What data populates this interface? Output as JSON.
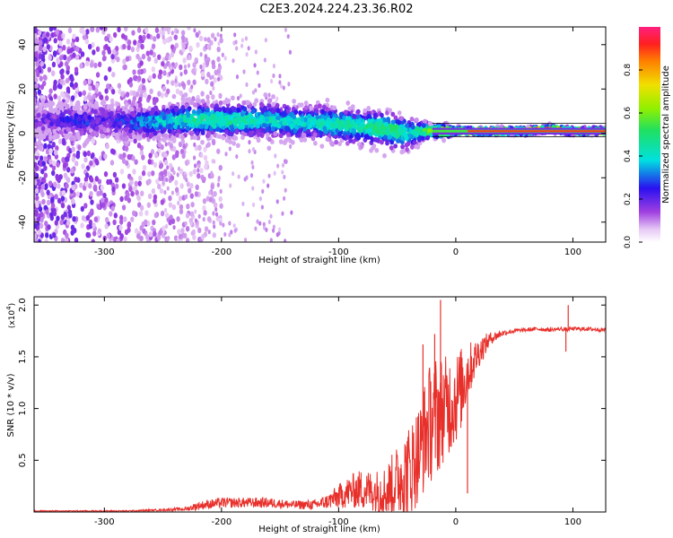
{
  "chart_data": [
    {
      "type": "heatmap",
      "title": "C2E3.2024.224.23.36.R02",
      "xlabel": "Height of straight line (km)",
      "ylabel": "Frequency (Hz)",
      "xlim": [
        -360,
        128
      ],
      "ylim": [
        -49,
        48
      ],
      "xticks": [
        -300,
        -200,
        -100,
        0,
        100
      ],
      "yticks": [
        -40,
        -20,
        0,
        20,
        40
      ],
      "xtick_labels": [
        "-300",
        "-200",
        "-100",
        "0",
        "100"
      ],
      "ytick_labels": [
        "-40",
        "-20",
        "0",
        "20",
        "40"
      ],
      "colorbar": {
        "label": "Normalized spectral amplitude",
        "range": [
          0,
          1
        ],
        "ticks": [
          0.0,
          0.2,
          0.4,
          0.6,
          0.8
        ],
        "tick_labels": [
          "0.0",
          "0.2",
          "0.4",
          "0.6",
          "0.8"
        ]
      },
      "ridge": {
        "x": [
          -360,
          -340,
          -320,
          -300,
          -280,
          -260,
          -240,
          -220,
          -200,
          -180,
          -160,
          -140,
          -120,
          -100,
          -80,
          -60,
          -50,
          -40,
          -30,
          -20,
          -10,
          0,
          20,
          40,
          60,
          80,
          100,
          128
        ],
        "center": [
          6,
          6,
          5,
          6,
          5,
          5,
          6,
          6,
          6,
          6,
          6,
          5,
          5,
          4,
          3,
          2,
          1,
          0,
          1,
          1,
          1,
          1,
          1,
          1,
          1,
          2,
          1,
          1
        ],
        "spread": [
          4,
          5,
          5,
          5,
          5,
          5,
          5,
          5,
          5,
          5,
          5,
          5,
          5,
          5,
          5,
          5,
          5,
          5,
          3,
          2,
          2,
          1,
          1,
          1,
          1,
          1,
          1,
          1
        ],
        "amplitude": [
          0.15,
          0.2,
          0.25,
          0.2,
          0.25,
          0.35,
          0.4,
          0.45,
          0.45,
          0.45,
          0.4,
          0.4,
          0.4,
          0.45,
          0.45,
          0.5,
          0.5,
          0.4,
          0.5,
          0.6,
          0.7,
          0.8,
          0.9,
          0.9,
          0.9,
          0.9,
          0.9,
          0.9
        ]
      }
    },
    {
      "type": "line",
      "title": "",
      "xlabel": "Height of straight line (km)",
      "ylabel": "SNR (10 * v/v)",
      "y_multiplier": "(x10",
      "y_exponent": "4",
      "y_multiplier_close": ")",
      "xlim": [
        -360,
        128
      ],
      "ylim": [
        0,
        2.08
      ],
      "xticks": [
        -300,
        -200,
        -100,
        0,
        100
      ],
      "yticks": [
        0.5,
        1.0,
        1.5,
        2.0
      ],
      "xtick_labels": [
        "-300",
        "-200",
        "-100",
        "0",
        "100"
      ],
      "ytick_labels": [
        "0.5",
        "1.0",
        "1.5",
        "2.0"
      ],
      "color": "#e8302b",
      "x": [
        -360,
        -320,
        -280,
        -250,
        -230,
        -220,
        -200,
        -180,
        -160,
        -140,
        -120,
        -110,
        -100,
        -90,
        -80,
        -70,
        -60,
        -50,
        -40,
        -30,
        -25,
        -20,
        -15,
        -10,
        -5,
        0,
        5,
        10,
        15,
        20,
        30,
        40,
        50,
        60,
        70,
        80,
        90,
        95,
        97,
        100,
        110,
        128
      ],
      "y": [
        0.01,
        0.01,
        0.01,
        0.02,
        0.03,
        0.06,
        0.09,
        0.09,
        0.09,
        0.07,
        0.07,
        0.1,
        0.15,
        0.2,
        0.22,
        0.2,
        0.2,
        0.3,
        0.4,
        0.6,
        0.8,
        0.9,
        0.95,
        1.0,
        1.05,
        1.1,
        1.2,
        1.35,
        1.45,
        1.55,
        1.68,
        1.73,
        1.75,
        1.76,
        1.77,
        1.76,
        1.77,
        1.76,
        1.77,
        1.77,
        1.77,
        1.76
      ],
      "noise": [
        0.005,
        0.005,
        0.006,
        0.01,
        0.02,
        0.04,
        0.05,
        0.05,
        0.05,
        0.04,
        0.05,
        0.07,
        0.12,
        0.16,
        0.2,
        0.2,
        0.25,
        0.35,
        0.45,
        0.5,
        0.55,
        0.6,
        0.6,
        0.5,
        0.5,
        0.45,
        0.4,
        0.3,
        0.2,
        0.15,
        0.06,
        0.03,
        0.02,
        0.02,
        0.02,
        0.02,
        0.02,
        0.02,
        0.02,
        0.02,
        0.02,
        0.02
      ],
      "spikes": [
        {
          "x": -13,
          "y": 2.05
        },
        {
          "x": -28,
          "y": 1.62
        },
        {
          "x": -18,
          "y": 1.72
        },
        {
          "x": 10,
          "y": 0.18
        },
        {
          "x": 96,
          "y": 2.0
        },
        {
          "x": 94,
          "y": 1.55
        }
      ]
    }
  ]
}
